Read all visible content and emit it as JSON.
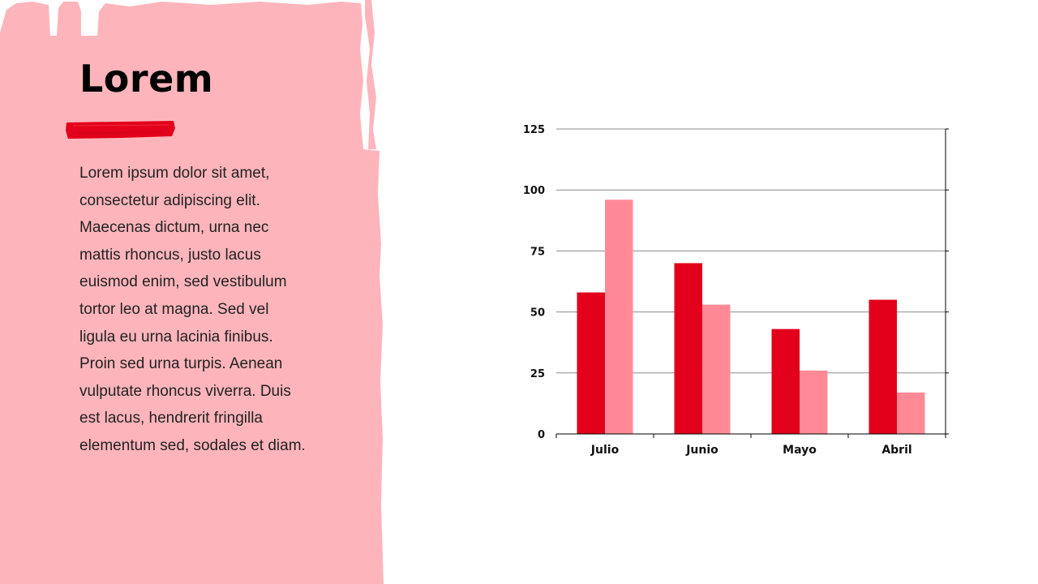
{
  "slide": {
    "title": "Lorem",
    "body": "Lorem ipsum dolor sit amet,\nconsectetur adipiscing elit.\nMaecenas dictum, urna nec\nmattis rhoncus, justo lacus\neuismod enim, sed vestibulum\ntortor leo at magna. Sed vel\nligula eu urna lacinia finibus.\nProin sed urna turpis. Aenean\nvulputate rhoncus viverra. Duis\nest lacus, hendrerit fringilla\nelementum sed, sodales et diam."
  },
  "colors": {
    "panel": "#FDB5BB",
    "accent": "#E2001A",
    "series_a": "#E2001A",
    "series_b": "#FF8A96",
    "gridline": "#8c8c8c"
  },
  "chart_data": {
    "type": "bar",
    "categories": [
      "Julio",
      "Junio",
      "Mayo",
      "Abril"
    ],
    "series": [
      {
        "values": [
          58,
          70,
          43,
          55
        ]
      },
      {
        "values": [
          96,
          53,
          26,
          17
        ]
      }
    ],
    "ylim": [
      0,
      125
    ],
    "yticks": [
      0,
      25,
      50,
      75,
      100,
      125
    ],
    "grid": true,
    "legend": "none"
  }
}
